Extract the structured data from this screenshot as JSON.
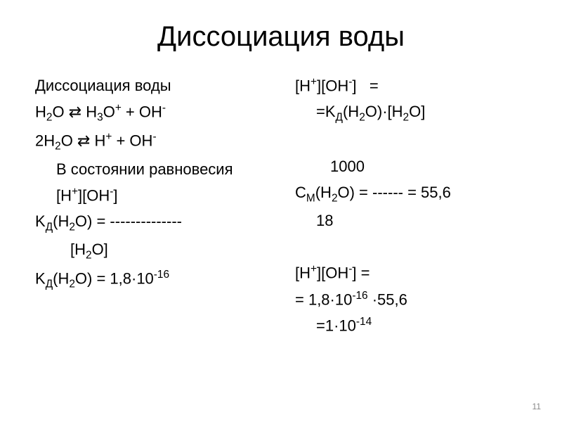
{
  "title": "Диссоциация воды",
  "left_column": {
    "lines": [
      {
        "text": "Диссоциация воды",
        "indent": 0
      },
      {
        "html": "H<sub>2</sub>O ⇄ H<sub>3</sub>O<sup>+</sup> + OH<sup>-</sup>",
        "indent": 0
      },
      {
        "html": "2H<sub>2</sub>O ⇄ H<sup>+</sup> + OH<sup>-</sup>",
        "indent": 0
      },
      {
        "text": "В состоянии равновесия",
        "indent": 1
      },
      {
        "html": "[H<sup>+</sup>][OH<sup>-</sup>]",
        "indent": 1
      },
      {
        "html": "K<sub>Д</sub>(H<sub>2</sub>O) = --------------",
        "indent": 0
      },
      {
        "html": "[H<sub>2</sub>O]",
        "indent": 2
      },
      {
        "html": "K<sub>Д</sub>(H<sub>2</sub>O) = 1,8·10<sup>-16</sup>",
        "indent": 0
      }
    ]
  },
  "right_column": {
    "lines": [
      {
        "html": "[H<sup>+</sup>][OH<sup>-</sup>]&nbsp;&nbsp;&nbsp;=",
        "indent": 0
      },
      {
        "html": "=K<sub>Д</sub>(H<sub>2</sub>O)·[H<sub>2</sub>O]",
        "indent": 1
      },
      {
        "text": " ",
        "indent": 0
      },
      {
        "text": "1000",
        "indent": 2
      },
      {
        "html": "C<sub>M</sub>(H<sub>2</sub>O) = ------ = 55,6",
        "indent": 0
      },
      {
        "text": "18",
        "indent": 1
      },
      {
        "text": " ",
        "indent": 0
      },
      {
        "html": "[H<sup>+</sup>][OH<sup>-</sup>] =",
        "indent": 0
      },
      {
        "html": "= 1,8·10<sup>-16</sup> ·55,6",
        "indent": 0
      },
      {
        "html": "=1·10<sup>-14</sup>",
        "indent": 1
      }
    ]
  },
  "page_number": "11",
  "styling": {
    "background_color": "#ffffff",
    "text_color": "#000000",
    "title_fontsize": 40,
    "body_fontsize": 22,
    "page_number_color": "#888888",
    "page_number_fontsize": 12,
    "font_family": "Arial"
  }
}
